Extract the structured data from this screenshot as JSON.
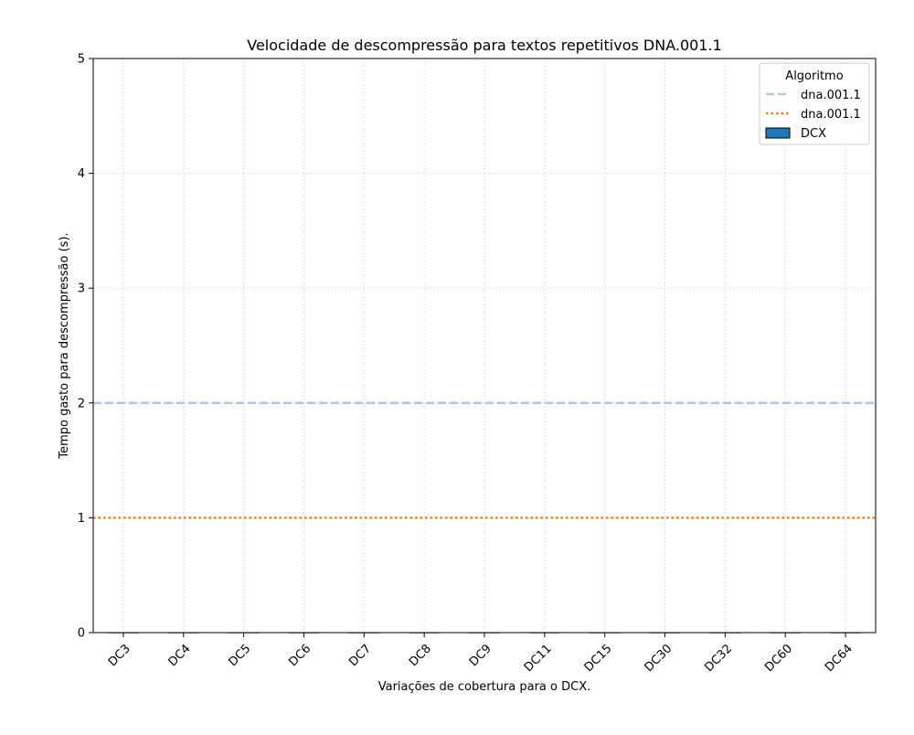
{
  "chart_data": {
    "type": "bar",
    "title": "Velocidade de descompressão para textos repetitivos DNA.001.1",
    "xlabel": "Variações de cobertura para o DCX.",
    "ylabel": "Tempo gasto para descompressão (s).",
    "categories": [
      "DC3",
      "DC4",
      "DC5",
      "DC6",
      "DC7",
      "DC8",
      "DC9",
      "DC11",
      "DC15",
      "DC30",
      "DC32",
      "DC60",
      "DC64"
    ],
    "series": [
      {
        "name": "DCX",
        "values": [
          0,
          0,
          0,
          0,
          0,
          0,
          0,
          0,
          0,
          0,
          0,
          0,
          0
        ],
        "color": "#1f77b4"
      }
    ],
    "reference_lines": [
      {
        "name": "dna.001.1",
        "y": 2,
        "style": "dashed",
        "color": "#aec7e8"
      },
      {
        "name": "dna.001.1",
        "y": 1,
        "style": "dotted",
        "color": "#ff7f0e"
      }
    ],
    "ylim": [
      0,
      5
    ],
    "yticks": [
      0,
      1,
      2,
      3,
      4,
      5
    ],
    "grid": true,
    "legend": {
      "title": "Algoritmo",
      "placement": "top-right"
    }
  }
}
